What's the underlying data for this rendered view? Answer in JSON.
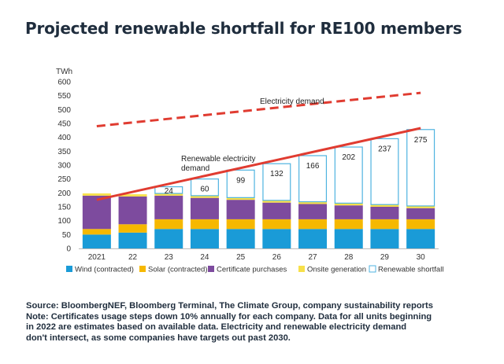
{
  "title": "Projected renewable shortfall for RE100 members",
  "notes": {
    "source": "Source: BloombergNEF, Bloomberg Terminal, The Climate Group, company sustainability reports",
    "note_lines": [
      "Note: Certificates usage steps down 10% annually for each company. Data for all units beginning",
      "in 2022 are estimates based on available data. Electricity and renewable electricity demand",
      "don't intersect, as some companies have targets out past 2030."
    ]
  },
  "chart_data": {
    "type": "bar",
    "stacked": true,
    "ylabel": "TWh",
    "ylim": [
      0,
      600
    ],
    "yticks": [
      0,
      50,
      100,
      150,
      200,
      250,
      300,
      350,
      400,
      450,
      500,
      550,
      600
    ],
    "grid": false,
    "legend_position": "bottom",
    "categories": [
      "2021",
      "22",
      "23",
      "24",
      "25",
      "26",
      "27",
      "28",
      "29",
      "30"
    ],
    "series": [
      {
        "name": "Wind (contracted)",
        "color": "#1a9bd7",
        "values": [
          50,
          57,
          70,
          70,
          70,
          70,
          70,
          70,
          70,
          70
        ]
      },
      {
        "name": "Solar (contracted)",
        "color": "#f6b800",
        "values": [
          20,
          30,
          35,
          35,
          35,
          35,
          35,
          35,
          35,
          35
        ]
      },
      {
        "name": "Certificate purchases",
        "color": "#7d4b9e",
        "values": [
          120,
          100,
          85,
          77,
          70,
          60,
          55,
          50,
          45,
          40
        ]
      },
      {
        "name": "Onsite generation",
        "color": "#f7e04a",
        "values": [
          8,
          8,
          8,
          8,
          8,
          8,
          8,
          8,
          8,
          8
        ]
      },
      {
        "name": "Renewable shortfall",
        "color": "#4fb3e0",
        "style": "outline",
        "values": [
          0,
          0,
          24,
          60,
          99,
          132,
          166,
          202,
          237,
          275
        ],
        "data_labels": [
          "",
          "",
          "24",
          "60",
          "99",
          "132",
          "166",
          "202",
          "237",
          "275"
        ]
      }
    ],
    "lines": [
      {
        "name": "Electricity demand",
        "label": "Electricity demand",
        "color": "#e03c31",
        "style": "dashed",
        "start": [
          0,
          440
        ],
        "end": [
          9,
          560
        ]
      },
      {
        "name": "Renewable electricity demand",
        "label_lines": [
          "Renewable electricity",
          "demand"
        ],
        "color": "#e03c31",
        "style": "solid",
        "start": [
          0,
          175
        ],
        "end": [
          9,
          433
        ]
      }
    ]
  }
}
